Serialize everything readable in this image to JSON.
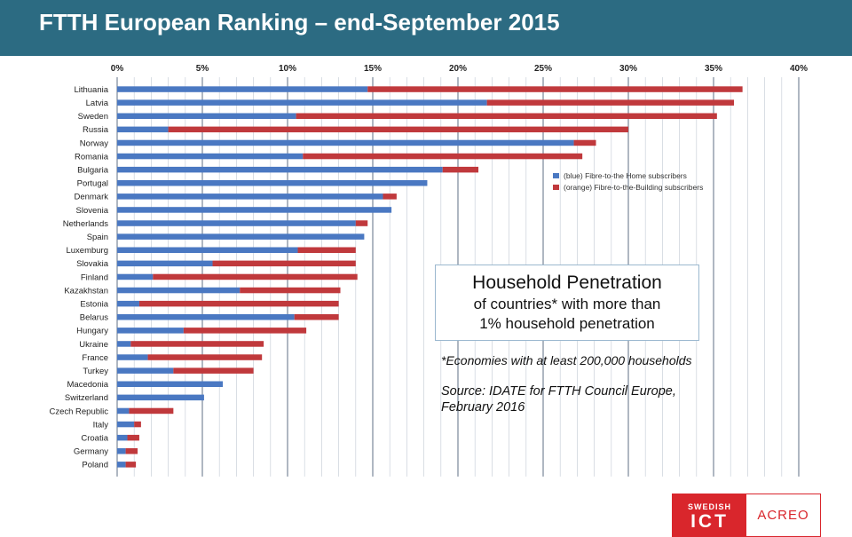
{
  "header": {
    "title": "FTTH European Ranking – end-September 2015"
  },
  "colors": {
    "header_bg": "#2c6b82",
    "ftth": "#4a78c2",
    "fttb": "#c0393c",
    "grid": "#9aa8b8",
    "brand_red": "#d9262c"
  },
  "chart_data": {
    "type": "bar",
    "orientation": "horizontal",
    "stacked": true,
    "xlim": [
      0,
      40
    ],
    "xticks": [
      "0%",
      "5%",
      "10%",
      "15%",
      "20%",
      "25%",
      "30%",
      "35%",
      "40%"
    ],
    "grid": true,
    "legend_position": "right",
    "categories": [
      "Lithuania",
      "Latvia",
      "Sweden",
      "Russia",
      "Norway",
      "Romania",
      "Bulgaria",
      "Portugal",
      "Denmark",
      "Slovenia",
      "Netherlands",
      "Spain",
      "Luxemburg",
      "Slovakia",
      "Finland",
      "Kazakhstan",
      "Estonia",
      "Belarus",
      "Hungary",
      "Ukraine",
      "France",
      "Turkey",
      "Macedonia",
      "Switzerland",
      "Czech Republic",
      "Italy",
      "Croatia",
      "Germany",
      "Poland"
    ],
    "series": [
      {
        "name": "(blue) Fibre-to-the Home subscribers",
        "values": [
          14.7,
          21.7,
          10.5,
          3.0,
          26.8,
          10.9,
          19.1,
          18.2,
          15.6,
          16.1,
          14.0,
          14.5,
          10.6,
          5.6,
          2.1,
          7.2,
          1.3,
          10.4,
          3.9,
          0.8,
          1.8,
          3.3,
          6.2,
          5.1,
          0.7,
          1.0,
          0.6,
          0.5,
          0.5
        ]
      },
      {
        "name": "(orange) Fibre-to-the-Building subscribers",
        "values": [
          22.0,
          14.5,
          24.7,
          27.0,
          1.3,
          16.4,
          2.1,
          0.0,
          0.8,
          0.0,
          0.7,
          0.0,
          3.4,
          8.4,
          12.0,
          5.9,
          11.7,
          2.6,
          7.2,
          7.8,
          6.7,
          4.7,
          0.0,
          0.0,
          2.6,
          0.4,
          0.7,
          0.7,
          0.6
        ]
      }
    ]
  },
  "annotation": {
    "line1": "Household Penetration",
    "line2": "of countries* with more than",
    "line3": "1% household penetration",
    "footnote": "*Economies with at least 200,000 households",
    "source": "Source: IDATE for FTTH Council Europe, February 2016"
  },
  "logo": {
    "small": "SWEDISH",
    "big": "ICT",
    "right": "ACREO"
  }
}
